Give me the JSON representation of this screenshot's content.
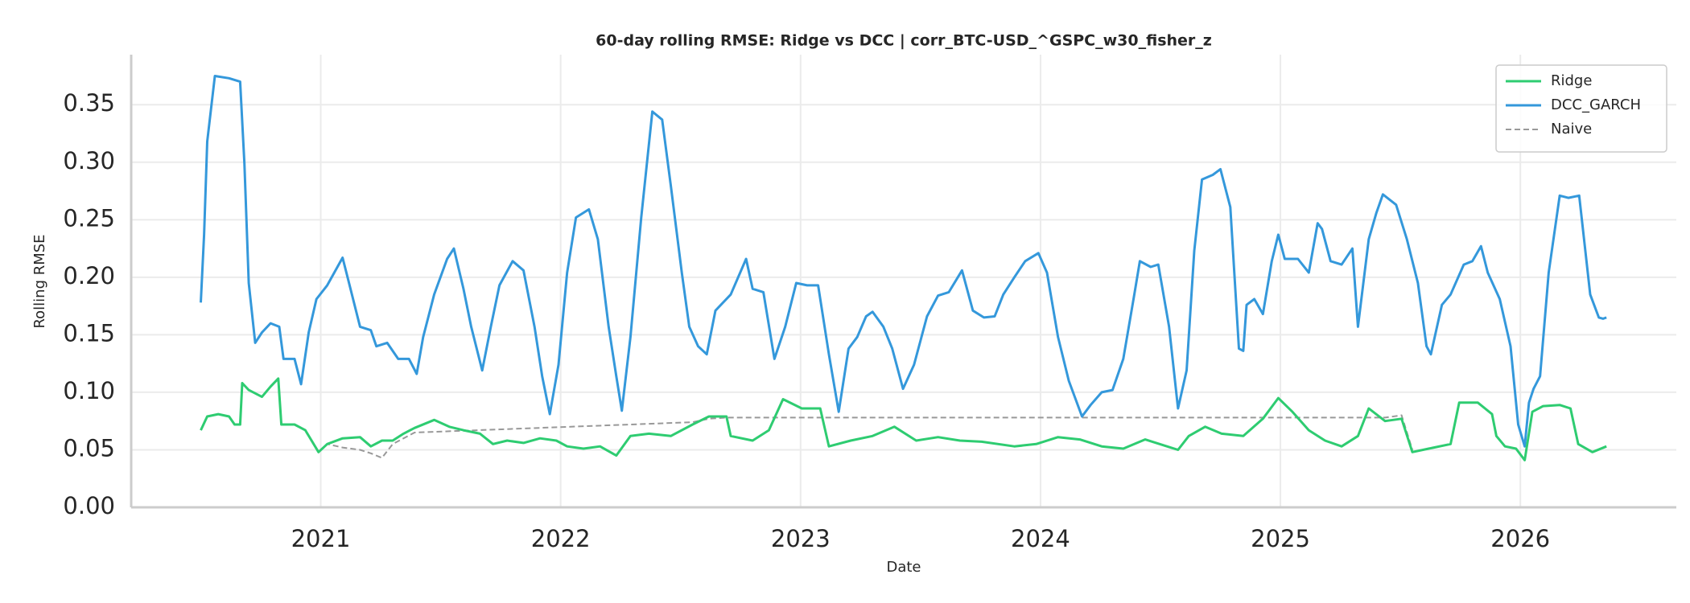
{
  "chart_data": {
    "type": "line",
    "title": "60-day rolling RMSE: Ridge vs DCC | corr_BTC-USD_^GSPC_w30_fisher_z",
    "x_label": "Date",
    "y_label": "Rolling RMSE",
    "xlim": [
      2020.21,
      2026.65
    ],
    "xticks": [
      2021,
      2022,
      2023,
      2024,
      2025,
      2026
    ],
    "ylim": [
      0,
      0.3935
    ],
    "yticks": [
      {
        "value": 0,
        "label": "0.00"
      },
      {
        "value": 0.05,
        "label": "0.05"
      },
      {
        "value": 0.1,
        "label": "0.10"
      },
      {
        "value": 0.15,
        "label": "0.15"
      },
      {
        "value": 0.2,
        "label": "0.20"
      },
      {
        "value": 0.25,
        "label": "0.25"
      },
      {
        "value": 0.3,
        "label": "0.30"
      },
      {
        "value": 0.35,
        "label": "0.35"
      }
    ],
    "grid": true,
    "legend": "upper right",
    "series": [
      {
        "name": "Ridge",
        "color": "#2ecc71",
        "linestyle": "solid",
        "x": [
          2020.5,
          2020.527,
          2020.573,
          2020.618,
          2020.641,
          2020.664,
          2020.673,
          2020.7,
          2020.755,
          2020.791,
          2020.823,
          2020.836,
          2020.891,
          2020.936,
          2020.991,
          2021.027,
          2021.091,
          2021.164,
          2021.209,
          2021.255,
          2021.3,
          2021.345,
          2021.391,
          2021.473,
          2021.536,
          2021.595,
          2021.664,
          2021.718,
          2021.777,
          2021.845,
          2021.914,
          2021.982,
          2022.027,
          2022.095,
          2022.164,
          2022.232,
          2022.291,
          2022.368,
          2022.459,
          2022.55,
          2022.618,
          2022.691,
          2022.709,
          2022.8,
          2022.868,
          2022.927,
          2023.005,
          2023.082,
          2023.118,
          2023.209,
          2023.3,
          2023.391,
          2023.482,
          2023.573,
          2023.664,
          2023.755,
          2023.891,
          2023.982,
          2024.073,
          2024.164,
          2024.255,
          2024.345,
          2024.436,
          2024.527,
          2024.573,
          2024.618,
          2024.686,
          2024.755,
          2024.845,
          2024.927,
          2024.991,
          2025.05,
          2025.118,
          2025.186,
          2025.255,
          2025.323,
          2025.368,
          2025.436,
          2025.505,
          2025.55,
          2025.618,
          2025.709,
          2025.745,
          2025.823,
          2025.882,
          2025.9,
          2025.936,
          2025.982,
          2026.018,
          2026.05,
          2026.095,
          2026.164,
          2026.209,
          2026.241,
          2026.3,
          2026.359
        ],
        "values": [
          0.067,
          0.079,
          0.081,
          0.079,
          0.072,
          0.072,
          0.108,
          0.102,
          0.096,
          0.105,
          0.112,
          0.072,
          0.072,
          0.067,
          0.048,
          0.055,
          0.06,
          0.061,
          0.053,
          0.058,
          0.058,
          0.064,
          0.069,
          0.076,
          0.07,
          0.067,
          0.064,
          0.055,
          0.058,
          0.056,
          0.06,
          0.058,
          0.053,
          0.051,
          0.053,
          0.045,
          0.062,
          0.064,
          0.062,
          0.072,
          0.079,
          0.079,
          0.062,
          0.058,
          0.067,
          0.094,
          0.086,
          0.086,
          0.053,
          0.058,
          0.062,
          0.07,
          0.058,
          0.061,
          0.058,
          0.057,
          0.053,
          0.055,
          0.061,
          0.059,
          0.053,
          0.051,
          0.059,
          0.053,
          0.05,
          0.062,
          0.07,
          0.064,
          0.062,
          0.077,
          0.095,
          0.083,
          0.067,
          0.058,
          0.053,
          0.062,
          0.086,
          0.075,
          0.077,
          0.048,
          0.051,
          0.055,
          0.091,
          0.091,
          0.081,
          0.062,
          0.053,
          0.051,
          0.041,
          0.083,
          0.088,
          0.089,
          0.086,
          0.055,
          0.048,
          0.053
        ]
      },
      {
        "name": "DCC_GARCH",
        "color": "#3498db",
        "linestyle": "solid",
        "x": [
          2020.5,
          2020.514,
          2020.527,
          2020.559,
          2020.618,
          2020.664,
          2020.682,
          2020.7,
          2020.727,
          2020.755,
          2020.791,
          2020.827,
          2020.845,
          2020.891,
          2020.918,
          2020.95,
          2020.982,
          2021.027,
          2021.091,
          2021.118,
          2021.164,
          2021.209,
          2021.232,
          2021.277,
          2021.323,
          2021.368,
          2021.4,
          2021.427,
          2021.473,
          2021.527,
          2021.555,
          2021.595,
          2021.627,
          2021.673,
          2021.709,
          2021.745,
          2021.8,
          2021.845,
          2021.891,
          2021.923,
          2021.955,
          2021.991,
          2022.027,
          2022.064,
          2022.118,
          2022.155,
          2022.2,
          2022.232,
          2022.255,
          2022.291,
          2022.336,
          2022.382,
          2022.423,
          2022.459,
          2022.505,
          2022.536,
          2022.573,
          2022.609,
          2022.645,
          2022.709,
          2022.773,
          2022.8,
          2022.845,
          2022.891,
          2022.936,
          2022.982,
          2023.027,
          2023.073,
          2023.118,
          2023.159,
          2023.2,
          2023.236,
          2023.273,
          2023.3,
          2023.345,
          2023.382,
          2023.427,
          2023.473,
          2023.527,
          2023.573,
          2023.618,
          2023.673,
          2023.718,
          2023.764,
          2023.809,
          2023.845,
          2023.891,
          2023.936,
          2023.991,
          2024.027,
          2024.073,
          2024.118,
          2024.173,
          2024.209,
          2024.255,
          2024.3,
          2024.345,
          2024.391,
          2024.414,
          2024.459,
          2024.491,
          2024.536,
          2024.573,
          2024.609,
          2024.641,
          2024.673,
          2024.718,
          2024.75,
          2024.791,
          2024.827,
          2024.845,
          2024.859,
          2024.891,
          2024.927,
          2024.964,
          2024.991,
          2025.018,
          2025.073,
          2025.118,
          2025.155,
          2025.173,
          2025.209,
          2025.255,
          2025.3,
          2025.323,
          2025.368,
          2025.4,
          2025.427,
          2025.482,
          2025.527,
          2025.573,
          2025.609,
          2025.627,
          2025.673,
          2025.709,
          2025.764,
          2025.8,
          2025.836,
          2025.864,
          2025.914,
          2025.959,
          2025.991,
          2026.018,
          2026.036,
          2026.055,
          2026.082,
          2026.118,
          2026.164,
          2026.2,
          2026.245,
          2026.291,
          2026.327,
          2026.345,
          2026.359
        ],
        "values": [
          0.178,
          0.237,
          0.318,
          0.375,
          0.373,
          0.37,
          0.299,
          0.195,
          0.143,
          0.152,
          0.16,
          0.157,
          0.129,
          0.129,
          0.107,
          0.152,
          0.181,
          0.193,
          0.217,
          0.195,
          0.157,
          0.154,
          0.14,
          0.143,
          0.129,
          0.129,
          0.116,
          0.148,
          0.185,
          0.216,
          0.225,
          0.19,
          0.157,
          0.119,
          0.157,
          0.193,
          0.214,
          0.206,
          0.157,
          0.114,
          0.081,
          0.124,
          0.204,
          0.252,
          0.259,
          0.233,
          0.157,
          0.114,
          0.084,
          0.148,
          0.252,
          0.344,
          0.337,
          0.28,
          0.204,
          0.157,
          0.14,
          0.133,
          0.171,
          0.185,
          0.216,
          0.19,
          0.187,
          0.129,
          0.157,
          0.195,
          0.193,
          0.193,
          0.133,
          0.083,
          0.138,
          0.148,
          0.166,
          0.17,
          0.157,
          0.138,
          0.103,
          0.124,
          0.166,
          0.184,
          0.187,
          0.206,
          0.171,
          0.165,
          0.166,
          0.185,
          0.2,
          0.214,
          0.221,
          0.204,
          0.148,
          0.11,
          0.079,
          0.089,
          0.1,
          0.102,
          0.129,
          0.185,
          0.214,
          0.209,
          0.211,
          0.157,
          0.086,
          0.119,
          0.223,
          0.285,
          0.289,
          0.294,
          0.261,
          0.138,
          0.136,
          0.176,
          0.181,
          0.168,
          0.214,
          0.237,
          0.216,
          0.216,
          0.204,
          0.247,
          0.242,
          0.214,
          0.211,
          0.225,
          0.157,
          0.233,
          0.256,
          0.272,
          0.263,
          0.233,
          0.195,
          0.14,
          0.133,
          0.176,
          0.185,
          0.211,
          0.214,
          0.227,
          0.204,
          0.181,
          0.14,
          0.072,
          0.053,
          0.091,
          0.103,
          0.114,
          0.204,
          0.271,
          0.269,
          0.271,
          0.185,
          0.165,
          0.164,
          0.165
        ]
      },
      {
        "name": "Naive",
        "color": "#999999",
        "linestyle": "dashed",
        "x": [
          2020.991,
          2021.027,
          2021.091,
          2021.164,
          2021.209,
          2021.255,
          2021.3,
          2021.345,
          2021.391,
          2022.55,
          2022.618,
          2022.691,
          2025.436,
          2025.505,
          2025.55
        ],
        "values": [
          0.048,
          0.055,
          0.052,
          0.05,
          0.047,
          0.043,
          0.055,
          0.06,
          0.065,
          0.074,
          0.077,
          0.078,
          0.078,
          0.08,
          0.05
        ]
      }
    ]
  }
}
